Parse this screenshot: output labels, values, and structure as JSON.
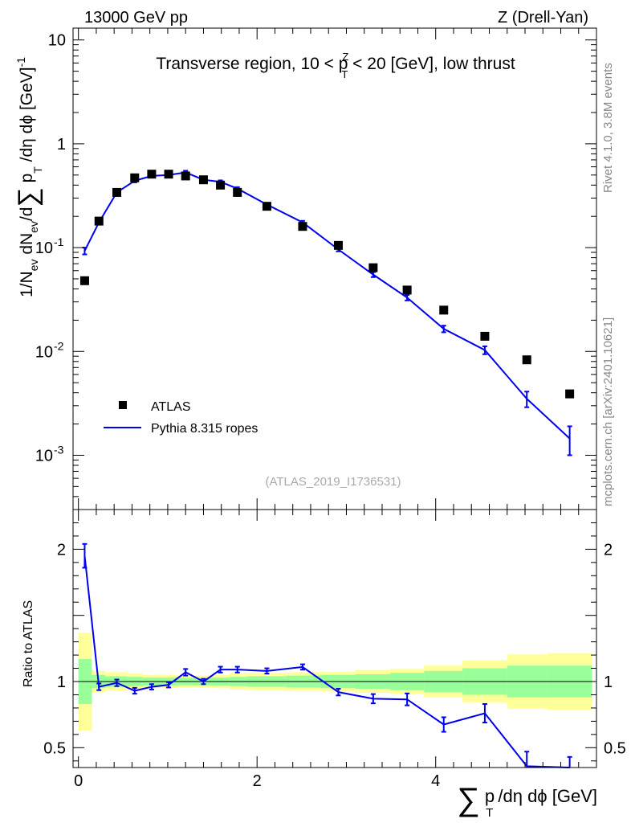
{
  "header": {
    "energy_label": "13000 GeV pp",
    "process_label": "Z (Drell-Yan)"
  },
  "side": {
    "rivet_label": "Rivet 4.1.0,  3.8M events",
    "source_label": "mcplots.cern.ch [arXiv:2401.10621]"
  },
  "chart_data": [
    {
      "type": "scatter",
      "panel": "main",
      "title_parts": [
        "Transverse region, 10 < p",
        "Z",
        "T",
        " < 20 [GeV], low thrust"
      ],
      "ylabel_parts": [
        "1/N",
        "ev",
        " dN",
        "ev",
        "/d",
        "∑",
        " p",
        "T",
        " /dη dϕ  [GeV]",
        "-1"
      ],
      "yscale": "log",
      "ylim": [
        0.0003,
        13
      ],
      "xlim": [
        -0.06,
        5.8
      ],
      "y_ticks": [
        {
          "value": 10,
          "label": "10"
        },
        {
          "value": 1,
          "label": "1"
        },
        {
          "value": 0.1,
          "label": "10",
          "exp": "-1"
        },
        {
          "value": 0.01,
          "label": "10",
          "exp": "-2"
        },
        {
          "value": 0.001,
          "label": "10",
          "exp": "-3"
        }
      ],
      "watermark": "(ATLAS_2019_I1736531)",
      "legend": {
        "position": "lower-left",
        "entries": [
          "ATLAS",
          "Pythia 8.315 ropes"
        ]
      },
      "series": [
        {
          "name": "ATLAS",
          "style": "black-square-markers",
          "x": [
            0.07,
            0.23,
            0.43,
            0.63,
            0.82,
            1.01,
            1.2,
            1.4,
            1.59,
            1.78,
            2.11,
            2.51,
            2.91,
            3.3,
            3.68,
            4.09,
            4.55,
            5.02,
            5.5
          ],
          "y": [
            0.048,
            0.18,
            0.34,
            0.47,
            0.51,
            0.51,
            0.49,
            0.45,
            0.4,
            0.34,
            0.25,
            0.16,
            0.105,
            0.064,
            0.039,
            0.025,
            0.014,
            0.0083,
            0.0039
          ]
        },
        {
          "name": "Pythia 8.315 ropes",
          "style": "blue-line",
          "color": "#0000ee",
          "x": [
            0.07,
            0.23,
            0.43,
            0.63,
            0.82,
            1.01,
            1.2,
            1.4,
            1.59,
            1.78,
            2.11,
            2.51,
            2.91,
            3.3,
            3.68,
            4.09,
            4.55,
            5.02,
            5.5
          ],
          "y": [
            0.093,
            0.175,
            0.34,
            0.44,
            0.49,
            0.5,
            0.53,
            0.45,
            0.43,
            0.37,
            0.26,
            0.175,
            0.096,
            0.055,
            0.033,
            0.0165,
            0.0103,
            0.0035,
            0.00145
          ],
          "err": [
            0.007,
            0.006,
            0.012,
            0.015,
            0.014,
            0.014,
            0.02,
            0.015,
            0.014,
            0.012,
            0.008,
            0.006,
            0.004,
            0.003,
            0.002,
            0.0012,
            0.0009,
            0.0006,
            0.00045
          ]
        }
      ]
    },
    {
      "type": "line",
      "panel": "ratio",
      "ylabel": "Ratio to ATLAS",
      "xlabel_parts": [
        "∑",
        " p",
        "T",
        " /dη dϕ [GeV]"
      ],
      "ylim": [
        0.35,
        2.3
      ],
      "xlim": [
        -0.06,
        5.8
      ],
      "y_ticks": [
        {
          "value": 2,
          "label": "2"
        },
        {
          "value": 1,
          "label": "1"
        },
        {
          "value": 0.5,
          "label": "0.5"
        }
      ],
      "x_ticks": [
        {
          "value": 0,
          "label": "0"
        },
        {
          "value": 2,
          "label": "2"
        },
        {
          "value": 4,
          "label": "4"
        }
      ],
      "reference_line": 1,
      "bands": {
        "edges": [
          0.0,
          0.15,
          0.3,
          0.55,
          0.72,
          0.92,
          1.11,
          1.3,
          1.49,
          1.69,
          1.88,
          2.33,
          2.71,
          3.1,
          3.49,
          3.87,
          4.3,
          4.8,
          5.25,
          5.75
        ],
        "yellow": [
          0.37,
          0.08,
          0.07,
          0.06,
          0.05,
          0.05,
          0.045,
          0.045,
          0.05,
          0.06,
          0.065,
          0.07,
          0.075,
          0.085,
          0.095,
          0.12,
          0.16,
          0.205,
          0.215
        ],
        "green": [
          0.17,
          0.05,
          0.04,
          0.035,
          0.03,
          0.03,
          0.028,
          0.028,
          0.03,
          0.035,
          0.04,
          0.045,
          0.05,
          0.055,
          0.065,
          0.08,
          0.1,
          0.12,
          0.12
        ]
      },
      "series": [
        {
          "name": "Pythia 8.315 ropes / ATLAS",
          "color": "#0000ee",
          "x": [
            0.07,
            0.23,
            0.43,
            0.63,
            0.82,
            1.01,
            1.2,
            1.4,
            1.59,
            1.78,
            2.11,
            2.51,
            2.91,
            3.3,
            3.68,
            4.09,
            4.55,
            5.02,
            5.5
          ],
          "y": [
            1.95,
            0.96,
            0.99,
            0.93,
            0.96,
            0.975,
            1.07,
            1.0,
            1.09,
            1.09,
            1.08,
            1.11,
            0.92,
            0.87,
            0.865,
            0.675,
            0.76,
            0.36,
            0.32
          ],
          "err": [
            0.09,
            0.025,
            0.025,
            0.022,
            0.02,
            0.02,
            0.025,
            0.02,
            0.022,
            0.022,
            0.02,
            0.02,
            0.025,
            0.035,
            0.045,
            0.055,
            0.07,
            0.11,
            0.11
          ]
        }
      ]
    }
  ]
}
